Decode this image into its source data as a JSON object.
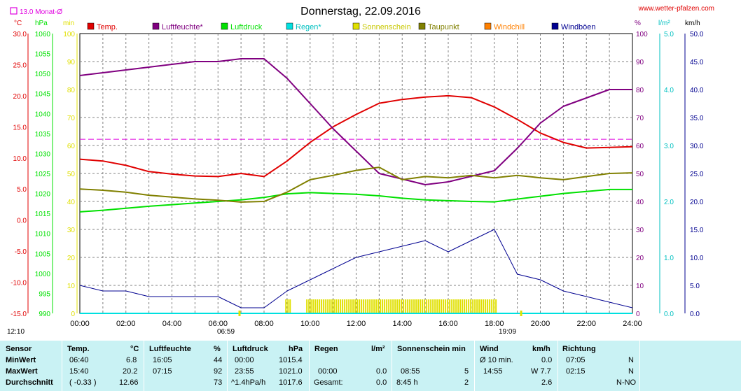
{
  "title": "Donnerstag, 22.09.2016",
  "site": "www.wetter-pfalzen.com",
  "monthly_avg_label": "13.0 Monat-Ø",
  "colors": {
    "temp": "#e00000",
    "humidity": "#800080",
    "pressure": "#00e000",
    "rain": "#00e0e0",
    "sunshine": "#e0e000",
    "dewpoint": "#808000",
    "windchill": "#ff8000",
    "gust": "#000090",
    "grid": "#808080"
  },
  "legend": [
    {
      "label": "Temp.",
      "color": "#e00000"
    },
    {
      "label": "Luftfeuchte*",
      "color": "#800080"
    },
    {
      "label": "Luftdruck",
      "color": "#00e000"
    },
    {
      "label": "Regen*",
      "color": "#00e0e0"
    },
    {
      "label": "Sonnenschein",
      "color": "#e0e000"
    },
    {
      "label": "Taupunkt",
      "color": "#808000"
    },
    {
      "label": "Windchill",
      "color": "#ff8000"
    },
    {
      "label": "Windböen",
      "color": "#000090"
    }
  ],
  "axes": {
    "temp": {
      "unit": "°C",
      "ticks": [
        "30.0",
        "25.0",
        "20.0",
        "15.0",
        "10.0",
        "5.0",
        "0.0",
        "-5.0",
        "-10.0",
        "-15.0"
      ]
    },
    "pressure": {
      "unit": "hPa",
      "ticks": [
        "1060",
        "1055",
        "1050",
        "1045",
        "1040",
        "1035",
        "1030",
        "1025",
        "1020",
        "1015",
        "1010",
        "1005",
        "1000",
        "995",
        "990"
      ]
    },
    "minutes": {
      "unit": "min",
      "ticks": [
        "100",
        "90",
        "80",
        "70",
        "60",
        "50",
        "40",
        "30",
        "20",
        "10",
        "0"
      ]
    },
    "humidity": {
      "unit": "%",
      "ticks": [
        "100",
        "90",
        "80",
        "70",
        "60",
        "50",
        "40",
        "30",
        "20",
        "10",
        "0"
      ]
    },
    "rain": {
      "unit": "l/m²",
      "ticks": [
        "5.0",
        "4.0",
        "3.0",
        "2.0",
        "1.0",
        "0.0"
      ]
    },
    "wind": {
      "unit": "km/h",
      "ticks": [
        "50.0",
        "45.0",
        "40.0",
        "35.0",
        "30.0",
        "25.0",
        "20.0",
        "15.0",
        "10.0",
        "5.0",
        "0.0"
      ]
    },
    "time": {
      "ticks": [
        "00:00",
        "02:00",
        "04:00",
        "06:00",
        "08:00",
        "10:00",
        "12:00",
        "14:00",
        "16:00",
        "18:00",
        "20:00",
        "22:00",
        "24:00"
      ]
    }
  },
  "day_labels": {
    "moonrise": "12:10",
    "sunrise": "06:59",
    "sunset": "19:09"
  },
  "chart_data": {
    "type": "line",
    "title": "Donnerstag, 22.09.2016",
    "x_hours": [
      0,
      1,
      2,
      3,
      4,
      5,
      6,
      7,
      8,
      9,
      10,
      11,
      12,
      13,
      14,
      15,
      16,
      17,
      18,
      19,
      20,
      21,
      22,
      23,
      24
    ],
    "series": [
      {
        "name": "Temp.",
        "axis": "°C",
        "values": [
          9.8,
          9.5,
          8.8,
          7.8,
          7.4,
          7.1,
          7.0,
          7.5,
          7.0,
          9.5,
          12.5,
          15.0,
          17.0,
          18.8,
          19.4,
          19.8,
          20.0,
          19.7,
          18.2,
          16.2,
          14.0,
          12.5,
          11.6,
          11.7,
          11.8
        ]
      },
      {
        "name": "Luftfeuchte*",
        "axis": "%",
        "values": [
          85,
          86,
          87,
          88,
          89,
          90,
          90,
          91,
          91,
          84,
          75,
          66,
          58,
          50,
          48,
          46,
          47,
          49,
          51,
          59,
          68,
          74,
          77,
          80,
          80
        ]
      },
      {
        "name": "Luftdruck",
        "axis": "hPa",
        "values": [
          1015.4,
          1015.8,
          1016.3,
          1016.8,
          1017.2,
          1017.6,
          1018.0,
          1018.4,
          1019.0,
          1019.9,
          1020.2,
          1020.0,
          1019.8,
          1019.4,
          1018.8,
          1018.4,
          1018.2,
          1018.0,
          1017.9,
          1018.6,
          1019.3,
          1020.0,
          1020.5,
          1021.0,
          1021.0
        ]
      },
      {
        "name": "Taupunkt",
        "axis": "°C",
        "values": [
          5.0,
          4.8,
          4.5,
          4.0,
          3.7,
          3.4,
          3.2,
          2.9,
          3.0,
          4.5,
          6.5,
          7.2,
          8.0,
          8.5,
          6.5,
          7.0,
          6.8,
          7.2,
          6.8,
          7.2,
          6.8,
          6.5,
          7.0,
          7.5,
          7.6
        ]
      },
      {
        "name": "Windböen",
        "axis": "km/h",
        "values": [
          5.0,
          4.0,
          4.0,
          3.0,
          3.0,
          3.0,
          3.0,
          1.0,
          1.0,
          4.0,
          6.0,
          8.0,
          10.0,
          11.0,
          12.0,
          13.0,
          11.0,
          13.0,
          15.0,
          7.0,
          6.0,
          4.0,
          3.0,
          2.0,
          1.0
        ]
      },
      {
        "name": "Regen*",
        "axis": "l/m²",
        "values": [
          0,
          0,
          0,
          0,
          0,
          0,
          0,
          0,
          0,
          0,
          0,
          0,
          0,
          0,
          0,
          0,
          0,
          0,
          0,
          0,
          0,
          0,
          0,
          0,
          0
        ]
      }
    ],
    "sunshine_intervals_hours": [
      [
        8.92,
        9.15
      ],
      [
        9.83,
        18.08
      ]
    ],
    "monthly_avg_temp": 13.0,
    "ylim_temp": [
      -15,
      30
    ],
    "ylim_pressure": [
      990,
      1060
    ],
    "ylim_humidity": [
      0,
      100
    ],
    "ylim_wind": [
      0,
      50
    ],
    "ylim_rain": [
      0,
      5
    ],
    "xlim_hours": [
      0,
      24
    ]
  },
  "stats": {
    "row_labels": [
      "Sensor",
      "MinWert",
      "MaxWert",
      "Durchschnitt"
    ],
    "temp": {
      "header": "Temp.",
      "unit": "°C",
      "min_time": "06:40",
      "min": "6.8",
      "max_time": "15:40",
      "max": "20.2",
      "avg_note": "( -0.33 )",
      "avg": "12.66"
    },
    "humidity": {
      "header": "Luftfeuchte",
      "unit": "%",
      "min_time": "16:05",
      "min": "44",
      "max_time": "07:15",
      "max": "92",
      "avg": "73"
    },
    "pressure": {
      "header": "Luftdruck",
      "unit": "hPa",
      "min_time": "00:00",
      "min": "1015.4",
      "max_time": "23:55",
      "max": "1021.0",
      "avg_note": "^1.4hPa/h",
      "avg": "1017.6"
    },
    "rain": {
      "header": "Regen",
      "unit": "l/m²",
      "max_time": "00:00",
      "max": "0.0",
      "min": "0.0",
      "avg_note": "Gesamt:",
      "avg": "0.0"
    },
    "sun": {
      "header": "Sonnenschein min",
      "max_time": "08:55",
      "max": "5",
      "avg_note": "8:45 h",
      "avg": "2"
    },
    "wind": {
      "header": "Wind",
      "unit": "km/h",
      "min_note": "Ø 10 min.",
      "min": "0.0",
      "max_time": "14:55",
      "max": "W 7.7",
      "avg": "2.6"
    },
    "direction": {
      "header": "Richtung",
      "min_time": "07:05",
      "min": "N",
      "max_time": "02:15",
      "max": "N",
      "avg": "N-NO"
    }
  }
}
